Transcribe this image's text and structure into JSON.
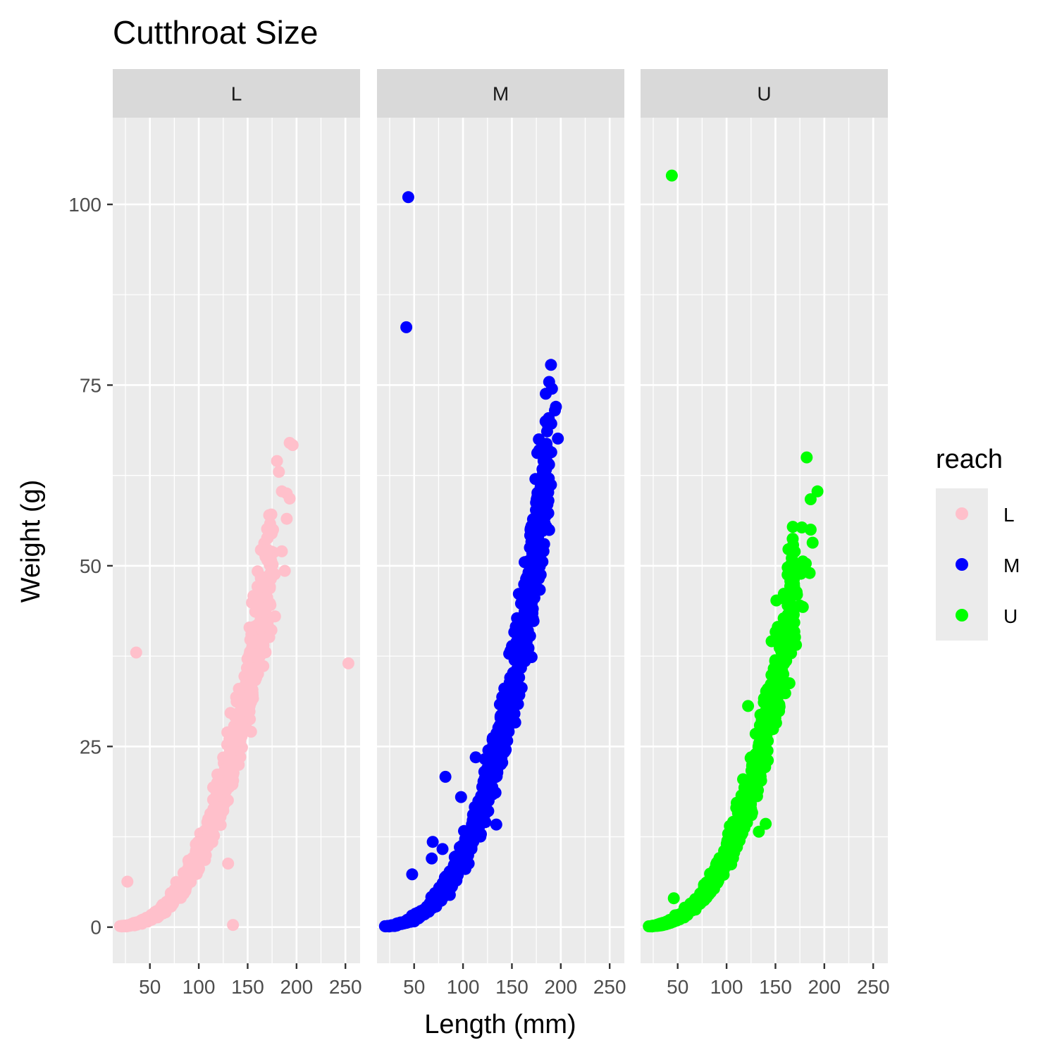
{
  "chart_data": {
    "type": "scatter",
    "title": "Cutthroat Size",
    "xlabel": "Length (mm)",
    "ylabel": "Weight (g)",
    "xlim": [
      12,
      265
    ],
    "ylim": [
      -5,
      112
    ],
    "x_ticks": [
      50,
      100,
      150,
      200,
      250
    ],
    "y_ticks": [
      0,
      25,
      50,
      75,
      100
    ],
    "grid": true,
    "facet_by": "reach",
    "legend": {
      "title": "reach",
      "position": "right",
      "entries": [
        {
          "label": "L",
          "color": "#FFC0CB"
        },
        {
          "label": "M",
          "color": "#0000FF"
        },
        {
          "label": "U",
          "color": "#00FF00"
        }
      ]
    },
    "panels": [
      {
        "strip": "L",
        "color": "#FFC0CB",
        "trend": {
          "a": 9.84e-06,
          "b": 3.0,
          "xmin": 22,
          "xmax": 175,
          "spread": 0.12
        },
        "outliers": [
          [
            27,
            6.3
          ],
          [
            36,
            38.0
          ],
          [
            130,
            8.8
          ],
          [
            135,
            0.3
          ],
          [
            253,
            36.5
          ],
          [
            193,
            67.0
          ],
          [
            196,
            66.7
          ],
          [
            180,
            64.5
          ],
          [
            182,
            63.0
          ],
          [
            185,
            60.3
          ],
          [
            190,
            60.0
          ],
          [
            193,
            59.3
          ],
          [
            172,
            57.0
          ],
          [
            190,
            56.5
          ],
          [
            172,
            54.5
          ],
          [
            176,
            55.0
          ],
          [
            188,
            49.3
          ],
          [
            178,
            43.0
          ],
          [
            185,
            52.0
          ]
        ]
      },
      {
        "strip": "M",
        "color": "#0000FF",
        "trend": {
          "a": 9.84e-06,
          "b": 3.0,
          "xmin": 22,
          "xmax": 188,
          "spread": 0.12
        },
        "outliers": [
          [
            44,
            101.0
          ],
          [
            42,
            83.0
          ],
          [
            82,
            20.8
          ],
          [
            98,
            18.0
          ],
          [
            113,
            23.5
          ],
          [
            134,
            14.2
          ],
          [
            48,
            7.3
          ],
          [
            68,
            9.5
          ],
          [
            69,
            11.8
          ],
          [
            79,
            10.8
          ],
          [
            190,
            77.8
          ],
          [
            191,
            74.5
          ],
          [
            195,
            72.0
          ],
          [
            194,
            71.5
          ],
          [
            197,
            67.6
          ],
          [
            178,
            66.0
          ],
          [
            176,
            65.6
          ],
          [
            183,
            65.0
          ],
          [
            188,
            64.0
          ],
          [
            190,
            61.2
          ],
          [
            174,
            62.0
          ],
          [
            176,
            59.5
          ],
          [
            182,
            59.8
          ],
          [
            181,
            54.8
          ],
          [
            183,
            53.0
          ],
          [
            170,
            55.5
          ],
          [
            163,
            50.5
          ],
          [
            172,
            56.4
          ]
        ]
      },
      {
        "strip": "U",
        "color": "#00FF00",
        "trend": {
          "a": 9.84e-06,
          "b": 3.0,
          "xmin": 22,
          "xmax": 170,
          "spread": 0.12
        },
        "outliers": [
          [
            44,
            104.0
          ],
          [
            46,
            4.0
          ],
          [
            122,
            30.6
          ],
          [
            140,
            14.3
          ],
          [
            133,
            13.2
          ],
          [
            182,
            65.0
          ],
          [
            193,
            60.3
          ],
          [
            186,
            59.2
          ],
          [
            177,
            55.3
          ],
          [
            186,
            55.0
          ],
          [
            188,
            53.2
          ],
          [
            178,
            50.6
          ],
          [
            181,
            50.3
          ],
          [
            185,
            49.0
          ],
          [
            176,
            48.9
          ],
          [
            169,
            47.5
          ],
          [
            172,
            46.0
          ],
          [
            175,
            44.5
          ],
          [
            178,
            44.3
          ],
          [
            164,
            41.0
          ]
        ]
      }
    ]
  }
}
